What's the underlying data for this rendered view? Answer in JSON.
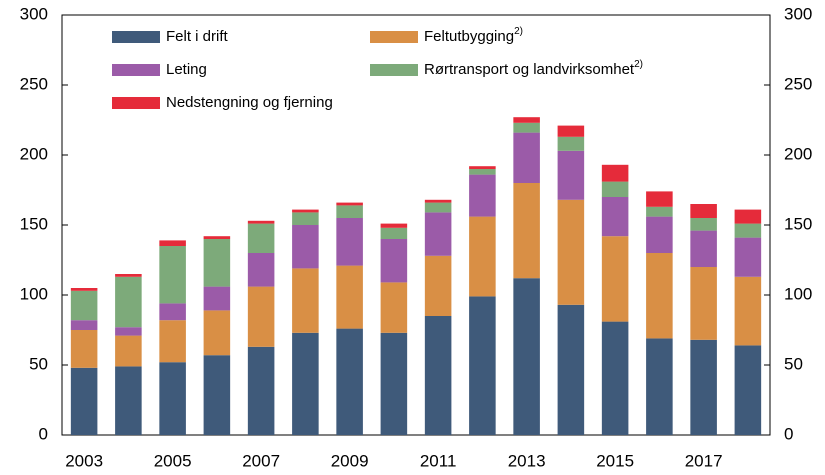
{
  "chart_data": {
    "type": "stacked_bar",
    "categories": [
      "2003",
      null,
      "2005",
      null,
      "2007",
      null,
      "2009",
      null,
      "2011",
      null,
      "2013",
      null,
      "2015",
      null,
      "2017",
      null
    ],
    "series": [
      {
        "name": "Felt i drift",
        "color": "#3f5a7a",
        "values": [
          48,
          49,
          52,
          57,
          63,
          73,
          76,
          73,
          85,
          99,
          112,
          93,
          81,
          69,
          68,
          64
        ]
      },
      {
        "name": "Feltutbygging",
        "note": "2)",
        "color": "#d98f45",
        "values": [
          27,
          22,
          30,
          32,
          43,
          46,
          45,
          36,
          43,
          57,
          68,
          75,
          61,
          61,
          52,
          49
        ]
      },
      {
        "name": "Leting",
        "color": "#9b5ba8",
        "values": [
          7,
          6,
          12,
          17,
          24,
          31,
          34,
          31,
          31,
          30,
          36,
          35,
          28,
          26,
          26,
          28
        ]
      },
      {
        "name": "Rørtransport og landvirksomhet",
        "note": "2)",
        "color": "#7daa7a",
        "values": [
          21,
          36,
          41,
          34,
          21,
          9,
          9,
          8,
          7,
          4,
          7,
          10,
          11,
          7,
          9,
          10
        ]
      },
      {
        "name": "Nedstengning og fjerning",
        "color": "#e52b3a",
        "values": [
          2,
          2,
          4,
          2,
          2,
          2,
          2,
          3,
          2,
          2,
          4,
          8,
          12,
          11,
          10,
          10
        ]
      }
    ],
    "ylim": [
      0,
      300
    ],
    "yticks": [
      0,
      50,
      100,
      150,
      200,
      250,
      300
    ],
    "y2lim": [
      0,
      300
    ],
    "y2ticks": [
      0,
      50,
      100,
      150,
      200,
      250,
      300
    ]
  }
}
